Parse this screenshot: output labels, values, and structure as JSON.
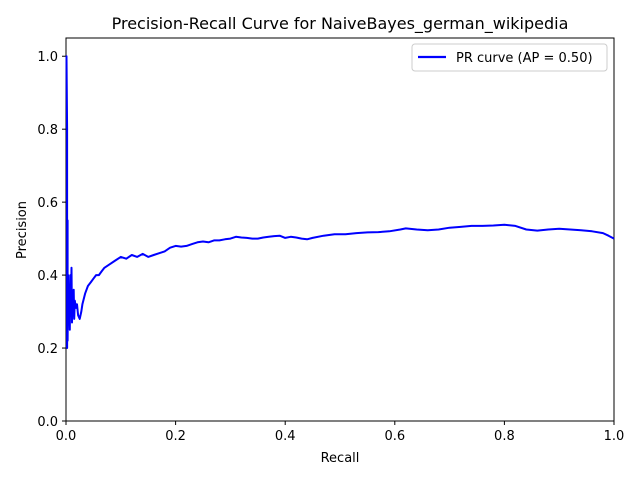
{
  "chart_data": {
    "type": "line",
    "title": "Precision-Recall Curve for NaiveBayes_german_wikipedia",
    "xlabel": "Recall",
    "ylabel": "Precision",
    "xlim": [
      0,
      1
    ],
    "ylim": [
      0,
      1.05
    ],
    "x_ticks": [
      "0.0",
      "0.2",
      "0.4",
      "0.6",
      "0.8",
      "1.0"
    ],
    "y_ticks": [
      "0.0",
      "0.2",
      "0.4",
      "0.6",
      "0.8",
      "1.0"
    ],
    "grid": false,
    "legend_position": "top-right",
    "series": [
      {
        "name": "PR curve (AP = 0.50)",
        "color": "#0000ff",
        "x": [
          0.0,
          0.001,
          0.002,
          0.002,
          0.003,
          0.003,
          0.004,
          0.005,
          0.006,
          0.007,
          0.008,
          0.009,
          0.01,
          0.011,
          0.012,
          0.013,
          0.014,
          0.015,
          0.016,
          0.018,
          0.02,
          0.022,
          0.025,
          0.028,
          0.03,
          0.035,
          0.04,
          0.045,
          0.05,
          0.055,
          0.06,
          0.065,
          0.07,
          0.08,
          0.09,
          0.1,
          0.11,
          0.12,
          0.13,
          0.14,
          0.15,
          0.16,
          0.17,
          0.18,
          0.19,
          0.2,
          0.21,
          0.22,
          0.23,
          0.24,
          0.25,
          0.26,
          0.27,
          0.28,
          0.29,
          0.3,
          0.31,
          0.32,
          0.33,
          0.34,
          0.35,
          0.36,
          0.37,
          0.38,
          0.39,
          0.4,
          0.41,
          0.42,
          0.43,
          0.44,
          0.45,
          0.47,
          0.49,
          0.51,
          0.53,
          0.55,
          0.57,
          0.59,
          0.61,
          0.62,
          0.64,
          0.66,
          0.68,
          0.7,
          0.72,
          0.74,
          0.76,
          0.78,
          0.8,
          0.82,
          0.84,
          0.86,
          0.88,
          0.9,
          0.92,
          0.94,
          0.96,
          0.98,
          0.99,
          1.0
        ],
        "y": [
          1.0,
          1.0,
          0.8,
          0.2,
          0.55,
          0.22,
          0.4,
          0.27,
          0.37,
          0.25,
          0.4,
          0.3,
          0.42,
          0.27,
          0.34,
          0.3,
          0.36,
          0.28,
          0.33,
          0.31,
          0.32,
          0.29,
          0.28,
          0.3,
          0.32,
          0.35,
          0.37,
          0.38,
          0.39,
          0.4,
          0.4,
          0.41,
          0.42,
          0.43,
          0.44,
          0.45,
          0.445,
          0.455,
          0.45,
          0.458,
          0.45,
          0.455,
          0.46,
          0.465,
          0.475,
          0.48,
          0.478,
          0.48,
          0.485,
          0.49,
          0.492,
          0.49,
          0.495,
          0.495,
          0.498,
          0.5,
          0.505,
          0.503,
          0.502,
          0.5,
          0.5,
          0.503,
          0.505,
          0.507,
          0.508,
          0.502,
          0.505,
          0.503,
          0.5,
          0.498,
          0.502,
          0.508,
          0.512,
          0.512,
          0.515,
          0.517,
          0.518,
          0.52,
          0.525,
          0.528,
          0.525,
          0.523,
          0.525,
          0.53,
          0.532,
          0.535,
          0.535,
          0.536,
          0.538,
          0.535,
          0.525,
          0.522,
          0.525,
          0.527,
          0.525,
          0.523,
          0.52,
          0.515,
          0.508,
          0.5
        ]
      }
    ]
  }
}
